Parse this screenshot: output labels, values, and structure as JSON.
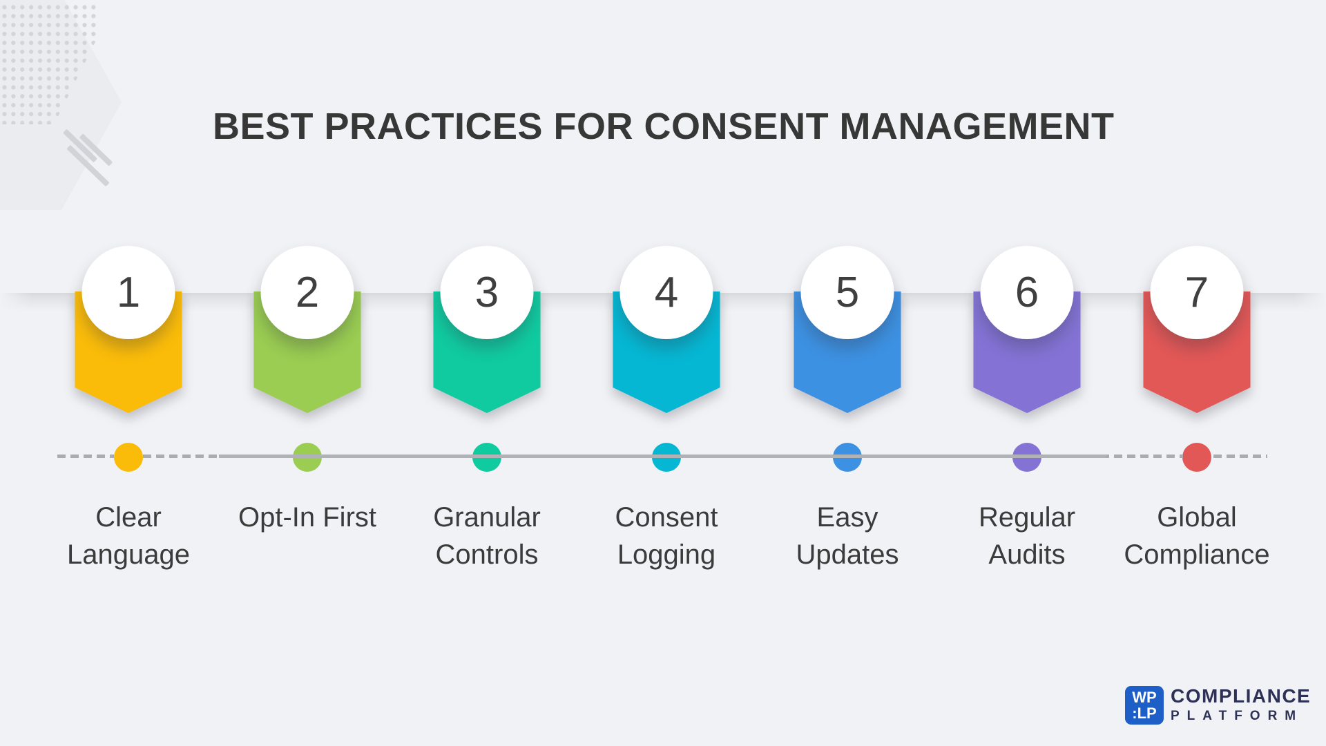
{
  "title": "BEST PRACTICES FOR CONSENT MANAGEMENT",
  "steps": [
    {
      "number": "1",
      "line1": "Clear",
      "line2": "Language",
      "color": "#FBBC09"
    },
    {
      "number": "2",
      "line1": "Opt-In First",
      "line2": "",
      "color": "#9ACD52"
    },
    {
      "number": "3",
      "line1": "Granular",
      "line2": "Controls",
      "color": "#10CBA0"
    },
    {
      "number": "4",
      "line1": "Consent",
      "line2": "Logging",
      "color": "#06B7D3"
    },
    {
      "number": "5",
      "line1": "Easy",
      "line2": "Updates",
      "color": "#3D91E2"
    },
    {
      "number": "6",
      "line1": "Regular",
      "line2": "Audits",
      "color": "#8473D5"
    },
    {
      "number": "7",
      "line1": "Global",
      "line2": "Compliance",
      "color": "#E25857"
    }
  ],
  "timeline": {
    "dash_color": "#ABACB0",
    "solid_color": "#B1B2B6"
  },
  "logo": {
    "badge_top": "WP",
    "badge_bottom": ":LP",
    "badge_color": "#1D5FC6",
    "name": "COMPLIANCE",
    "tagline": "PLATFORM",
    "text_color": "#2E3156"
  }
}
